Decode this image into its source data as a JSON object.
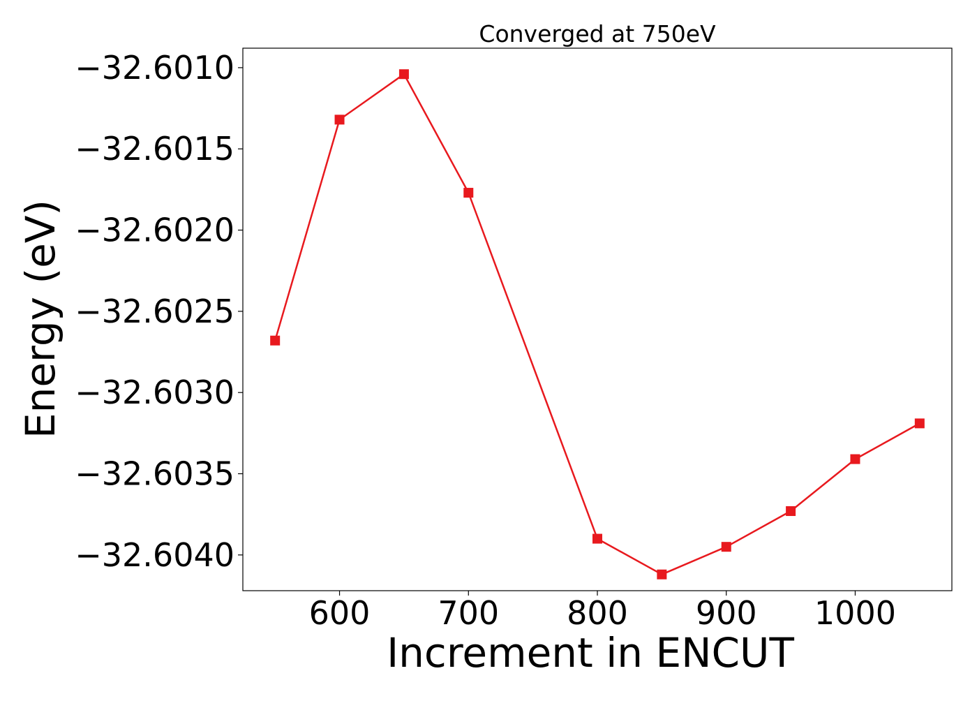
{
  "chart_data": {
    "type": "line",
    "title": "Converged at 750eV",
    "xlabel": "Increment in ENCUT",
    "ylabel": "Energy (eV)",
    "xlim": [
      525,
      1075
    ],
    "ylim": [
      -32.60422,
      -32.60088
    ],
    "x_ticks": [
      600,
      700,
      800,
      900,
      1000
    ],
    "x_tick_labels": [
      "600",
      "700",
      "800",
      "900",
      "1000"
    ],
    "y_ticks": [
      -32.601,
      -32.6015,
      -32.602,
      -32.6025,
      -32.603,
      -32.6035,
      -32.604
    ],
    "y_tick_labels": [
      "−32.6010",
      "−32.6015",
      "−32.6020",
      "−32.6025",
      "−32.6030",
      "−32.6035",
      "−32.6040"
    ],
    "grid": false,
    "legend": "none",
    "series": [
      {
        "color": "#e8191e",
        "marker": "square",
        "x": [
          550,
          600,
          650,
          700,
          800,
          850,
          900,
          950,
          1000,
          1050
        ],
        "values": [
          -32.60268,
          -32.60132,
          -32.60104,
          -32.60177,
          -32.6039,
          -32.60412,
          -32.60395,
          -32.60373,
          -32.60341,
          -32.60319
        ]
      }
    ]
  }
}
